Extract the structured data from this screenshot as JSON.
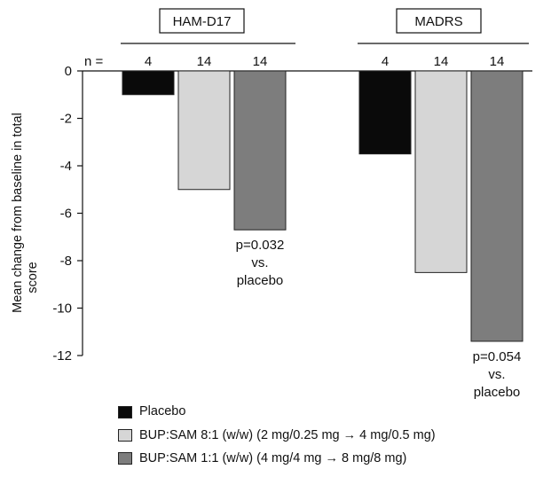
{
  "chart_data": {
    "type": "bar",
    "y_axis_label": "Mean change from baseline in total score",
    "ylim": [
      -12,
      0
    ],
    "yticks": [
      "0",
      "-2",
      "-4",
      "-6",
      "-8",
      "-10",
      "-12"
    ],
    "n_label": "n =",
    "groups": [
      {
        "name": "HAM-D17",
        "values": [
          -1.0,
          -5.0,
          -6.7
        ],
        "n": [
          "4",
          "14",
          "14"
        ],
        "annotation": [
          "p=0.032",
          "vs.",
          "placebo"
        ],
        "annotation_bar": 2
      },
      {
        "name": "MADRS",
        "values": [
          -3.5,
          -8.5,
          -11.4
        ],
        "n": [
          "4",
          "14",
          "14"
        ],
        "annotation": [
          "p=0.054",
          "vs.",
          "placebo"
        ],
        "annotation_bar": 2
      }
    ],
    "series": [
      {
        "name": "Placebo",
        "color": "#0a0a0a"
      },
      {
        "name": "BUP:SAM 8:1 (w/w)  (2 mg/0.25 mg → 4 mg/0.5 mg)",
        "color": "#d6d6d6"
      },
      {
        "name": "BUP:SAM 1:1 (w/w)  (4 mg/4 mg → 8 mg/8 mg)",
        "color": "#7d7d7d"
      }
    ],
    "legend_position": "bottom-left",
    "grid": false
  }
}
